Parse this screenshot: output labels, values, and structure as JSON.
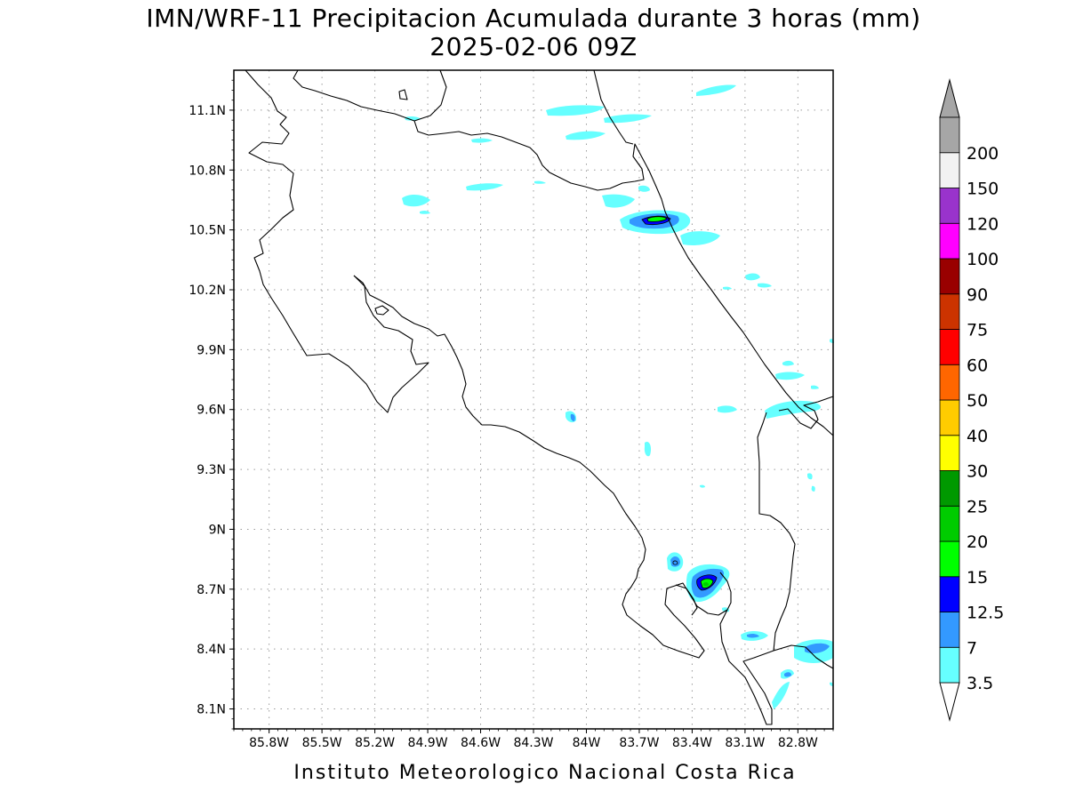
{
  "title": "IMN/WRF-11 Precipitacion Acumulada durante 3 horas (mm)",
  "subtitle": "2025-02-06 09Z",
  "footer": "Instituto Meteorologico Nacional Costa Rica",
  "map": {
    "lon_range": [
      -86.0,
      -82.6
    ],
    "lat_range": [
      8.0,
      11.3
    ],
    "x_ticks": [
      {
        "lon": -85.8,
        "label": "85.8W"
      },
      {
        "lon": -85.5,
        "label": "85.5W"
      },
      {
        "lon": -85.2,
        "label": "85.2W"
      },
      {
        "lon": -84.9,
        "label": "84.9W"
      },
      {
        "lon": -84.6,
        "label": "84.6W"
      },
      {
        "lon": -84.3,
        "label": "84.3W"
      },
      {
        "lon": -84.0,
        "label": "84W"
      },
      {
        "lon": -83.7,
        "label": "83.7W"
      },
      {
        "lon": -83.4,
        "label": "83.4W"
      },
      {
        "lon": -83.1,
        "label": "83.1W"
      },
      {
        "lon": -82.8,
        "label": "82.8W"
      }
    ],
    "y_ticks": [
      {
        "lat": 11.1,
        "label": "11.1N"
      },
      {
        "lat": 10.8,
        "label": "10.8N"
      },
      {
        "lat": 10.5,
        "label": "10.5N"
      },
      {
        "lat": 10.2,
        "label": "10.2N"
      },
      {
        "lat": 9.9,
        "label": "9.9N"
      },
      {
        "lat": 9.6,
        "label": "9.6N"
      },
      {
        "lat": 9.3,
        "label": "9.3N"
      },
      {
        "lat": 9.0,
        "label": "9N"
      },
      {
        "lat": 8.7,
        "label": "8.7N"
      },
      {
        "lat": 8.4,
        "label": "8.4N"
      },
      {
        "lat": 8.1,
        "label": "8.1N"
      }
    ],
    "grid": "dotted"
  },
  "colorbar": {
    "levels": [
      {
        "label": "3.5",
        "color": "#66ffff"
      },
      {
        "label": "7",
        "color": "#3399ff"
      },
      {
        "label": "12.5",
        "color": "#0000ff"
      },
      {
        "label": "15",
        "color": "#00ff00"
      },
      {
        "label": "20",
        "color": "#00cc00"
      },
      {
        "label": "25",
        "color": "#009900"
      },
      {
        "label": "30",
        "color": "#ffff00"
      },
      {
        "label": "40",
        "color": "#ffcc00"
      },
      {
        "label": "50",
        "color": "#ff6600"
      },
      {
        "label": "60",
        "color": "#ff0000"
      },
      {
        "label": "75",
        "color": "#cc3300"
      },
      {
        "label": "90",
        "color": "#990000"
      },
      {
        "label": "100",
        "color": "#ff00ff"
      },
      {
        "label": "120",
        "color": "#9933cc"
      },
      {
        "label": "150",
        "color": "#f2f2f2"
      },
      {
        "label": "200",
        "color": "#a6a6a6"
      }
    ],
    "low_color": "#ffffff",
    "high_color": "#a6a6a6"
  },
  "colors": {
    "light_rain": "#66ffff",
    "moderate_rain": "#3399ff",
    "heavy_rain": "#0000ff",
    "very_heavy_rain": "#00ff00",
    "extreme_rain": "#00cc00"
  }
}
